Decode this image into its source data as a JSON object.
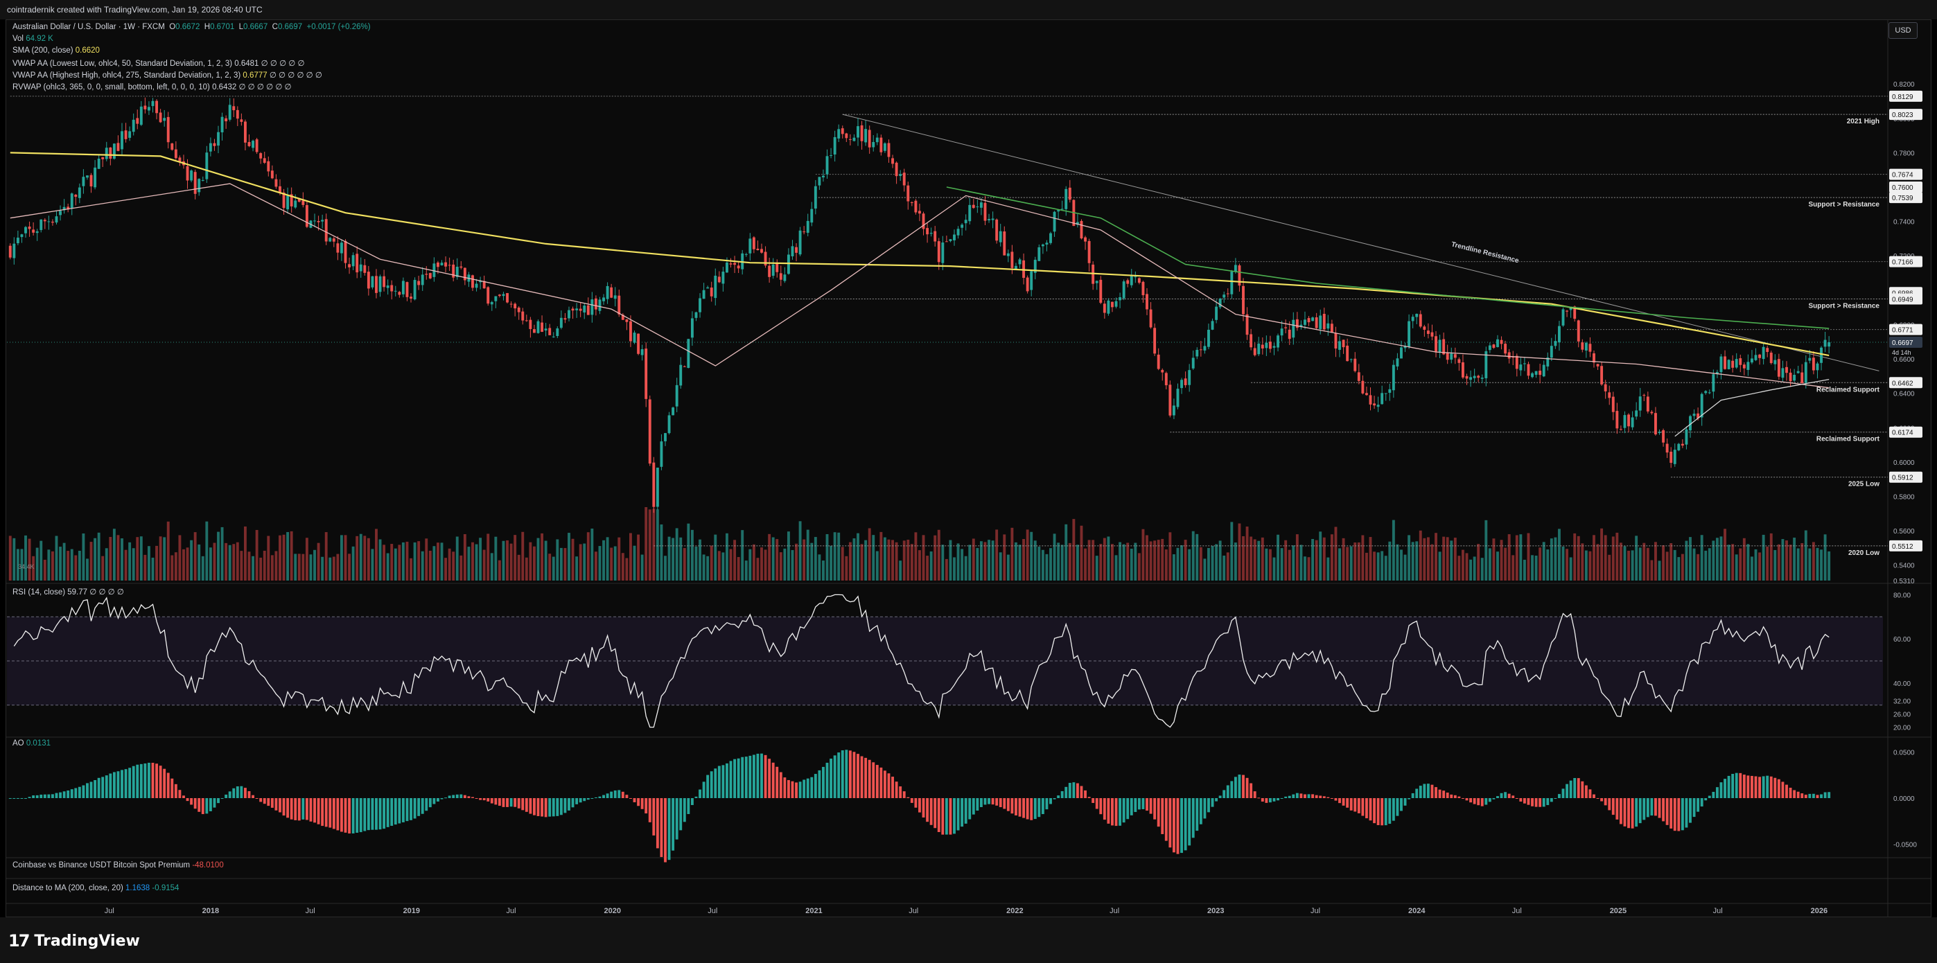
{
  "header": {
    "attribution": "cointradernik created with TradingView.com, Jan 19, 2026 08:40 UTC",
    "currency": "USD"
  },
  "legend": {
    "symbol": "Australian Dollar / U.S. Dollar · 1W · FXCM",
    "o_label": "O",
    "o": "0.6672",
    "h_label": "H",
    "h": "0.6701",
    "l_label": "L",
    "l": "0.6667",
    "c_label": "C",
    "c": "0.6697",
    "change": "+0.0017 (+0.26%)",
    "vol_label": "Vol",
    "vol": "64.92 K",
    "sma_label": "SMA (200, close)",
    "sma": "0.6620",
    "vwap_low_label": "VWAP AA (Lowest Low, ohlc4, 50, Standard Deviation, 1, 2, 3)",
    "vwap_low": "0.6481",
    "vwap_high_label": "VWAP AA (Highest High, ohlc4, 275, Standard Deviation, 1, 2, 3)",
    "vwap_high": "0.6777",
    "rvwap_label": "RVWAP (ohlc3, 365, 0, 0, small, bottom, left, 0, 0, 0, 10)",
    "rvwap": "0.6432",
    "na": "∅ ∅ ∅ ∅ ∅",
    "na6": "∅ ∅ ∅ ∅ ∅ ∅"
  },
  "rsi": {
    "label": "RSI (14, close)",
    "value": "59.77",
    "na": "∅ ∅ ∅ ∅"
  },
  "ao": {
    "label": "AO",
    "value": "0.0131"
  },
  "premium": {
    "label": "Coinbase vs Binance USDT Bitcoin Spot Premium",
    "value": "-48.0100"
  },
  "distance": {
    "label": "Distance to MA (200, close, 20)",
    "v1": "1.1638",
    "v2": "-0.9154"
  },
  "brand": {
    "name": "TradingView",
    "mark": "17"
  },
  "colors": {
    "up": "#26a69a",
    "down": "#ef5350",
    "sma": "#f0e060",
    "vwap_high": "#4caf50",
    "rvwap": "#e8bcbc",
    "vwap_low": "#d6d6d6",
    "rsi_band": "#7e57c2"
  },
  "chart_data": [
    {
      "type": "candlestick",
      "title": "Australian Dollar / U.S. Dollar · 1W · FXCM",
      "x_ticks": [
        "Jul",
        "2018",
        "Jul",
        "2019",
        "Jul",
        "2020",
        "Jul",
        "2021",
        "Jul",
        "2022",
        "Jul",
        "2023",
        "Jul",
        "2024",
        "Jul",
        "2025",
        "Jul",
        "2026"
      ],
      "y_ticks": [
        "0.8200",
        "0.8000",
        "0.7800",
        "0.7600",
        "0.7400",
        "0.7200",
        "0.7000",
        "0.6800",
        "0.6600",
        "0.6400",
        "0.6200",
        "0.6000",
        "0.5800",
        "0.5600",
        "0.5400",
        "0.5310"
      ],
      "ylim": [
        0.531,
        0.835
      ],
      "anchors": [
        {
          "date": "2017-01-02",
          "price": 0.725
        },
        {
          "date": "2017-04-17",
          "price": 0.75
        },
        {
          "date": "2017-09-18",
          "price": 0.81
        },
        {
          "date": "2017-12-04",
          "price": 0.76
        },
        {
          "date": "2018-02-05",
          "price": 0.805
        },
        {
          "date": "2018-05-07",
          "price": 0.755
        },
        {
          "date": "2018-08-13",
          "price": 0.73
        },
        {
          "date": "2018-10-15",
          "price": 0.705
        },
        {
          "date": "2018-12-31",
          "price": 0.7
        },
        {
          "date": "2019-02-25",
          "price": 0.715
        },
        {
          "date": "2019-06-03",
          "price": 0.695
        },
        {
          "date": "2019-09-02",
          "price": 0.675
        },
        {
          "date": "2019-12-30",
          "price": 0.7
        },
        {
          "date": "2020-02-24",
          "price": 0.66
        },
        {
          "date": "2020-03-16",
          "price": 0.575
        },
        {
          "date": "2020-03-30",
          "price": 0.61
        },
        {
          "date": "2020-06-08",
          "price": 0.695
        },
        {
          "date": "2020-09-07",
          "price": 0.725
        },
        {
          "date": "2020-11-02",
          "price": 0.705
        },
        {
          "date": "2021-02-22",
          "price": 0.795
        },
        {
          "date": "2021-05-10",
          "price": 0.785
        },
        {
          "date": "2021-08-16",
          "price": 0.72
        },
        {
          "date": "2021-10-25",
          "price": 0.75
        },
        {
          "date": "2022-01-24",
          "price": 0.705
        },
        {
          "date": "2022-04-04",
          "price": 0.755
        },
        {
          "date": "2022-06-13",
          "price": 0.69
        },
        {
          "date": "2022-08-08",
          "price": 0.71
        },
        {
          "date": "2022-10-10",
          "price": 0.63
        },
        {
          "date": "2023-02-06",
          "price": 0.71
        },
        {
          "date": "2023-03-06",
          "price": 0.665
        },
        {
          "date": "2023-07-10",
          "price": 0.685
        },
        {
          "date": "2023-10-23",
          "price": 0.63
        },
        {
          "date": "2023-12-25",
          "price": 0.685
        },
        {
          "date": "2024-04-15",
          "price": 0.645
        },
        {
          "date": "2024-05-20",
          "price": 0.67
        },
        {
          "date": "2024-08-05",
          "price": 0.65
        },
        {
          "date": "2024-09-30",
          "price": 0.69
        },
        {
          "date": "2025-01-06",
          "price": 0.62
        },
        {
          "date": "2025-02-17",
          "price": 0.635
        },
        {
          "date": "2025-04-07",
          "price": 0.598
        },
        {
          "date": "2025-06-30",
          "price": 0.655
        },
        {
          "date": "2025-09-15",
          "price": 0.663
        },
        {
          "date": "2025-11-17",
          "price": 0.645
        },
        {
          "date": "2026-01-19",
          "price": 0.6697
        }
      ],
      "series": [
        {
          "name": "SMA (200, close)",
          "points": [
            {
              "date": "2017-01-02",
              "value": 0.78
            },
            {
              "date": "2017-10-02",
              "value": 0.778
            },
            {
              "date": "2018-09-03",
              "value": 0.745
            },
            {
              "date": "2019-09-02",
              "value": 0.727
            },
            {
              "date": "2020-09-07",
              "value": 0.716
            },
            {
              "date": "2021-09-06",
              "value": 0.714
            },
            {
              "date": "2022-09-05",
              "value": 0.708
            },
            {
              "date": "2023-09-04",
              "value": 0.701
            },
            {
              "date": "2024-09-02",
              "value": 0.692
            },
            {
              "date": "2025-06-02",
              "value": 0.676
            },
            {
              "date": "2026-01-19",
              "value": 0.662
            }
          ]
        },
        {
          "name": "RVWAP",
          "points": [
            {
              "date": "2017-01-02",
              "value": 0.742
            },
            {
              "date": "2018-02-05",
              "value": 0.762
            },
            {
              "date": "2018-11-05",
              "value": 0.718
            },
            {
              "date": "2019-12-30",
              "value": 0.689
            },
            {
              "date": "2020-07-06",
              "value": 0.656
            },
            {
              "date": "2021-02-01",
              "value": 0.7
            },
            {
              "date": "2021-10-04",
              "value": 0.755
            },
            {
              "date": "2022-06-06",
              "value": 0.735
            },
            {
              "date": "2023-02-06",
              "value": 0.686
            },
            {
              "date": "2024-02-05",
              "value": 0.664
            },
            {
              "date": "2025-02-03",
              "value": 0.657
            },
            {
              "date": "2025-08-04",
              "value": 0.65
            },
            {
              "date": "2026-01-19",
              "value": 0.6432
            }
          ]
        },
        {
          "name": "VWAP AA (Highest High)",
          "points": [
            {
              "date": "2021-08-30",
              "value": 0.76
            },
            {
              "date": "2022-06-06",
              "value": 0.742
            },
            {
              "date": "2022-11-07",
              "value": 0.715
            },
            {
              "date": "2023-07-03",
              "value": 0.704
            },
            {
              "date": "2024-07-01",
              "value": 0.693
            },
            {
              "date": "2025-05-05",
              "value": 0.684
            },
            {
              "date": "2026-01-19",
              "value": 0.6777
            }
          ]
        },
        {
          "name": "VWAP AA (Lowest Low)",
          "points": [
            {
              "date": "2025-04-14",
              "value": 0.615
            },
            {
              "date": "2025-07-07",
              "value": 0.636
            },
            {
              "date": "2025-10-06",
              "value": 0.642
            },
            {
              "date": "2026-01-19",
              "value": 0.6481
            }
          ]
        }
      ],
      "price_labels": [
        {
          "price": 0.8129,
          "text": "0.8129"
        },
        {
          "price": 0.8023,
          "text": "0.8023"
        },
        {
          "price": 0.7674,
          "text": "0.7674"
        },
        {
          "price": 0.76,
          "text": "0.7600"
        },
        {
          "price": 0.7539,
          "text": "0.7539"
        },
        {
          "price": 0.7166,
          "text": "0.7166"
        },
        {
          "price": 0.6986,
          "text": "0.6986"
        },
        {
          "price": 0.6949,
          "text": "0.6949"
        },
        {
          "price": 0.6771,
          "text": "0.6771"
        },
        {
          "price": 0.6697,
          "text": "0.6697"
        },
        {
          "price": 0.6462,
          "text": "0.6462"
        },
        {
          "price": 0.6174,
          "text": "0.6174"
        },
        {
          "price": 0.5912,
          "text": "0.5912"
        },
        {
          "price": 0.5512,
          "text": "0.5512"
        }
      ],
      "countdown": "4d 14h",
      "levels": [
        {
          "price": 0.8023,
          "label": "2021 High",
          "from": "2021-02-22"
        },
        {
          "price": 0.7539,
          "label": "Support > Resistance",
          "from": "2021-01-04"
        },
        {
          "price": 0.6949,
          "label": "Support > Resistance",
          "from": "2020-11-02"
        },
        {
          "price": 0.6462,
          "label": "Reclaimed Support",
          "from": "2023-03-06"
        },
        {
          "price": 0.6174,
          "label": "Reclaimed Support",
          "from": "2022-10-10"
        },
        {
          "price": 0.5912,
          "label": "2025 Low",
          "from": "2025-04-07"
        },
        {
          "price": 0.5512,
          "label": "2020 Low",
          "from": "2020-03-16"
        }
      ],
      "annotations": [
        {
          "text": "Trendline Resistance",
          "from": {
            "date": "2021-02-22",
            "price": 0.8023
          },
          "to": {
            "date": "2026-04-20",
            "price": 0.653
          }
        }
      ],
      "volume_label": "34.4K"
    },
    {
      "type": "line",
      "title": "RSI (14, close)",
      "y_ticks": [
        "80.00",
        "60.00",
        "40.00",
        "32.00",
        "26.00",
        "20.00"
      ],
      "band": [
        30,
        70
      ],
      "last": 59.77
    },
    {
      "type": "bar",
      "title": "AO",
      "y_ticks": [
        "0.0500",
        "0.0000",
        "-0.0500"
      ],
      "last": 0.0131
    }
  ]
}
